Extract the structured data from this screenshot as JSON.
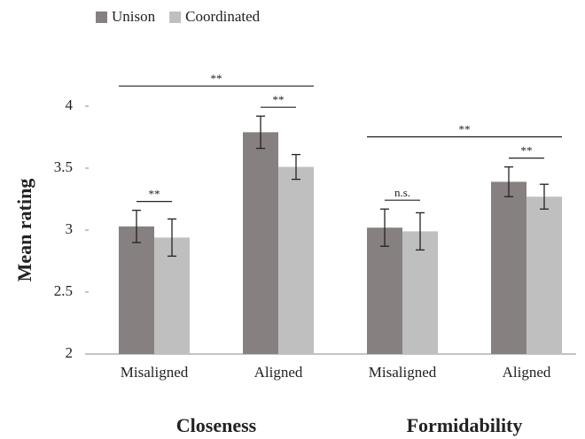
{
  "chart_data": {
    "type": "bar",
    "ylabel": "Mean rating",
    "categories": [
      "Misaligned",
      "Aligned",
      "Misaligned",
      "Aligned"
    ],
    "groups": [
      {
        "label": "Closeness",
        "categories": [
          0,
          1
        ]
      },
      {
        "label": "Formidability",
        "categories": [
          2,
          3
        ]
      }
    ],
    "series": [
      {
        "name": "Unison",
        "color": "#878080",
        "values": [
          3.03,
          3.79,
          3.02,
          3.39
        ],
        "errors": [
          0.13,
          0.13,
          0.15,
          0.12
        ]
      },
      {
        "name": "Coordinated",
        "color": "#bfbfbf",
        "values": [
          2.94,
          3.51,
          2.99,
          3.27
        ],
        "errors": [
          0.15,
          0.1,
          0.15,
          0.1
        ]
      }
    ],
    "annotations": [
      {
        "text": "**",
        "categories": [
          0
        ]
      },
      {
        "text": "**",
        "categories": [
          1
        ]
      },
      {
        "text": "n.s.",
        "categories": [
          2
        ]
      },
      {
        "text": "**",
        "categories": [
          3
        ]
      },
      {
        "text": "**",
        "categories": [
          0,
          1
        ]
      },
      {
        "text": "**",
        "categories": [
          2,
          3
        ]
      }
    ],
    "ylim": [
      2,
      4
    ],
    "yticks": [
      2,
      2.5,
      3,
      3.5,
      4
    ],
    "legend": "top-left"
  }
}
